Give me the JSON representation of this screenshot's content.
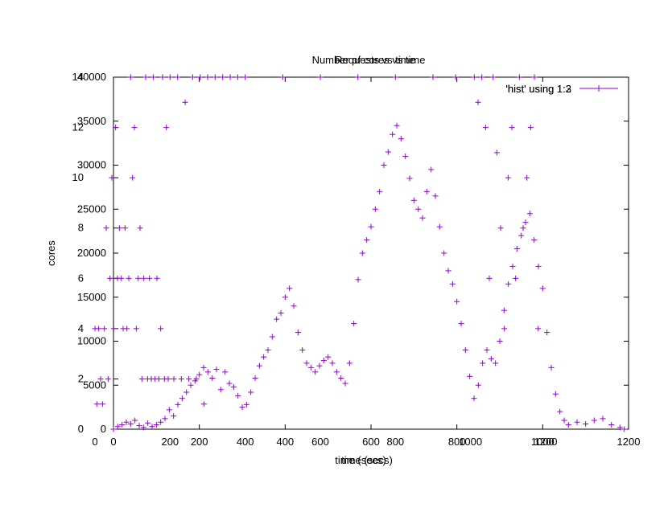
{
  "chart_data": [
    {
      "type": "scatter",
      "title": "Number of cores vs time",
      "xlabel": "time (secs)",
      "ylabel": "cores",
      "legend_label": "'hist' using 1:2",
      "marker": "+",
      "color": "#9400D3",
      "xlim": [
        0,
        1200
      ],
      "ylim": [
        0,
        14
      ],
      "x_ticks": [
        0,
        200,
        400,
        600,
        800,
        1000,
        1200
      ],
      "y_ticks": [
        0,
        2,
        4,
        6,
        8,
        10,
        12,
        14
      ],
      "points": [
        [
          0,
          4
        ],
        [
          5,
          1
        ],
        [
          10,
          4
        ],
        [
          15,
          2
        ],
        [
          20,
          1
        ],
        [
          25,
          4
        ],
        [
          30,
          8
        ],
        [
          35,
          2
        ],
        [
          40,
          6
        ],
        [
          45,
          10
        ],
        [
          50,
          4
        ],
        [
          55,
          12
        ],
        [
          60,
          6
        ],
        [
          65,
          8
        ],
        [
          70,
          6
        ],
        [
          75,
          4
        ],
        [
          80,
          8
        ],
        [
          85,
          4
        ],
        [
          90,
          6
        ],
        [
          95,
          14
        ],
        [
          100,
          10
        ],
        [
          105,
          12
        ],
        [
          110,
          4
        ],
        [
          115,
          6
        ],
        [
          120,
          8
        ],
        [
          125,
          2
        ],
        [
          130,
          6
        ],
        [
          135,
          14
        ],
        [
          140,
          2
        ],
        [
          145,
          6
        ],
        [
          150,
          2
        ],
        [
          155,
          14
        ],
        [
          160,
          2
        ],
        [
          165,
          6
        ],
        [
          170,
          2
        ],
        [
          175,
          4
        ],
        [
          180,
          14
        ],
        [
          185,
          2
        ],
        [
          190,
          12
        ],
        [
          195,
          2
        ],
        [
          200,
          14
        ],
        [
          210,
          2
        ],
        [
          220,
          14
        ],
        [
          230,
          2
        ],
        [
          240,
          13
        ],
        [
          250,
          2
        ],
        [
          260,
          14
        ],
        [
          270,
          2
        ],
        [
          280,
          14
        ],
        [
          290,
          1
        ],
        [
          300,
          14
        ],
        [
          320,
          14
        ],
        [
          340,
          14
        ],
        [
          360,
          14
        ],
        [
          380,
          14
        ],
        [
          400,
          14
        ],
        [
          500,
          14
        ],
        [
          600,
          14
        ],
        [
          700,
          14
        ],
        [
          800,
          14
        ],
        [
          900,
          14
        ],
        [
          960,
          14
        ],
        [
          1010,
          14
        ],
        [
          1020,
          13
        ],
        [
          1030,
          14
        ],
        [
          1040,
          12
        ],
        [
          1050,
          6
        ],
        [
          1060,
          14
        ],
        [
          1070,
          11
        ],
        [
          1080,
          8
        ],
        [
          1090,
          4
        ],
        [
          1100,
          10
        ],
        [
          1110,
          12
        ],
        [
          1120,
          6
        ],
        [
          1130,
          14
        ],
        [
          1140,
          8
        ],
        [
          1150,
          10
        ],
        [
          1160,
          12
        ],
        [
          1170,
          14
        ],
        [
          1180,
          4
        ]
      ]
    },
    {
      "type": "scatter",
      "title": "Requests vs time",
      "xlabel": "time (secs)",
      "ylabel": "",
      "legend_label": "'hist' using 1:3",
      "marker": "+",
      "color": "#9400D3",
      "xlim": [
        0,
        1200
      ],
      "ylim": [
        0,
        40000
      ],
      "x_ticks": [
        0,
        200,
        400,
        600,
        800,
        1000,
        1200
      ],
      "y_ticks": [
        0,
        5000,
        10000,
        15000,
        20000,
        25000,
        30000,
        35000,
        40000
      ],
      "points": [
        [
          0,
          0
        ],
        [
          10,
          300
        ],
        [
          20,
          500
        ],
        [
          30,
          800
        ],
        [
          40,
          600
        ],
        [
          50,
          1000
        ],
        [
          60,
          400
        ],
        [
          70,
          200
        ],
        [
          80,
          700
        ],
        [
          90,
          300
        ],
        [
          100,
          500
        ],
        [
          110,
          800
        ],
        [
          120,
          1200
        ],
        [
          130,
          2200
        ],
        [
          140,
          1500
        ],
        [
          150,
          2800
        ],
        [
          160,
          3500
        ],
        [
          170,
          4200
        ],
        [
          180,
          5000
        ],
        [
          190,
          5500
        ],
        [
          200,
          6200
        ],
        [
          210,
          7000
        ],
        [
          220,
          6500
        ],
        [
          230,
          5800
        ],
        [
          240,
          6800
        ],
        [
          250,
          4500
        ],
        [
          260,
          6500
        ],
        [
          270,
          5200
        ],
        [
          280,
          4800
        ],
        [
          290,
          3800
        ],
        [
          300,
          2500
        ],
        [
          310,
          2800
        ],
        [
          320,
          4200
        ],
        [
          330,
          5800
        ],
        [
          340,
          7200
        ],
        [
          350,
          8200
        ],
        [
          360,
          9000
        ],
        [
          370,
          10500
        ],
        [
          380,
          12500
        ],
        [
          390,
          13200
        ],
        [
          400,
          15000
        ],
        [
          410,
          16000
        ],
        [
          420,
          14000
        ],
        [
          430,
          11000
        ],
        [
          440,
          9000
        ],
        [
          450,
          7500
        ],
        [
          460,
          7000
        ],
        [
          470,
          6500
        ],
        [
          480,
          7200
        ],
        [
          490,
          7800
        ],
        [
          500,
          8200
        ],
        [
          510,
          7500
        ],
        [
          520,
          6500
        ],
        [
          530,
          5800
        ],
        [
          540,
          5200
        ],
        [
          550,
          7500
        ],
        [
          560,
          12000
        ],
        [
          570,
          17000
        ],
        [
          580,
          20000
        ],
        [
          590,
          21500
        ],
        [
          600,
          23000
        ],
        [
          610,
          25000
        ],
        [
          620,
          27000
        ],
        [
          630,
          30000
        ],
        [
          640,
          31500
        ],
        [
          650,
          33500
        ],
        [
          660,
          34500
        ],
        [
          670,
          33000
        ],
        [
          680,
          31000
        ],
        [
          690,
          28500
        ],
        [
          700,
          26000
        ],
        [
          710,
          25000
        ],
        [
          720,
          24000
        ],
        [
          730,
          27000
        ],
        [
          740,
          29500
        ],
        [
          750,
          26500
        ],
        [
          760,
          23000
        ],
        [
          770,
          20000
        ],
        [
          780,
          18000
        ],
        [
          790,
          16500
        ],
        [
          800,
          14500
        ],
        [
          810,
          12000
        ],
        [
          820,
          9000
        ],
        [
          830,
          6000
        ],
        [
          840,
          3500
        ],
        [
          850,
          5000
        ],
        [
          860,
          7500
        ],
        [
          870,
          9000
        ],
        [
          880,
          8000
        ],
        [
          890,
          7500
        ],
        [
          900,
          10000
        ],
        [
          910,
          13500
        ],
        [
          920,
          16500
        ],
        [
          930,
          18500
        ],
        [
          940,
          20500
        ],
        [
          950,
          22000
        ],
        [
          960,
          23500
        ],
        [
          970,
          24500
        ],
        [
          980,
          21500
        ],
        [
          990,
          18500
        ],
        [
          1000,
          16000
        ],
        [
          1010,
          11000
        ],
        [
          1020,
          7000
        ],
        [
          1030,
          4000
        ],
        [
          1040,
          2000
        ],
        [
          1050,
          1000
        ],
        [
          1060,
          500
        ],
        [
          1080,
          800
        ],
        [
          1100,
          600
        ],
        [
          1120,
          1000
        ],
        [
          1140,
          1200
        ],
        [
          1160,
          500
        ],
        [
          1180,
          200
        ],
        [
          1190,
          0
        ]
      ]
    }
  ]
}
